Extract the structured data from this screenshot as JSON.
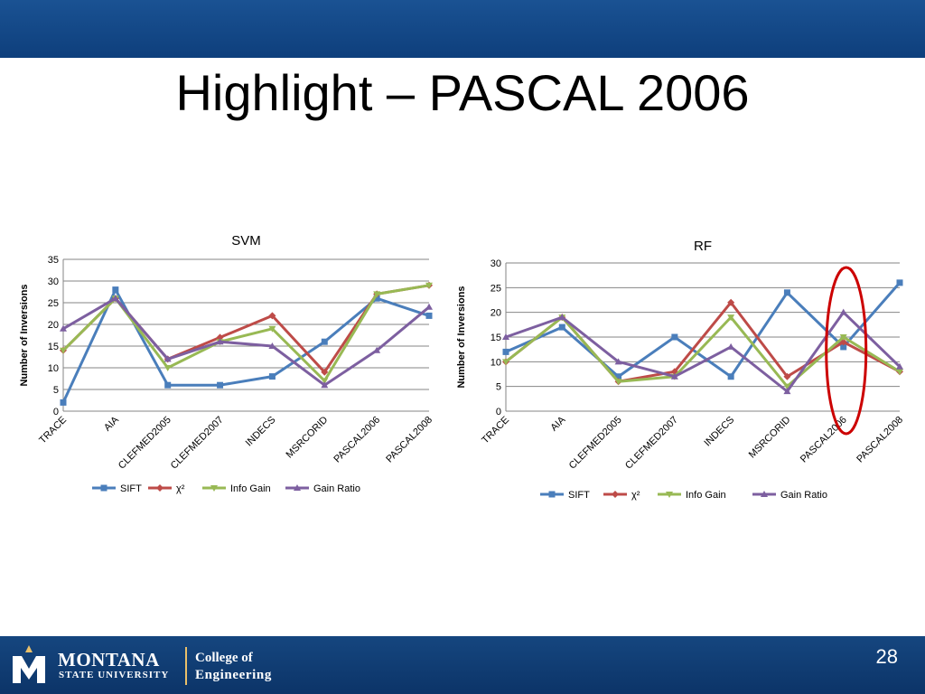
{
  "slide": {
    "title": "Highlight – PASCAL 2006",
    "page_number": "28"
  },
  "footer": {
    "university_line1": "MONTANA",
    "university_line2": "STATE UNIVERSITY",
    "college_line1": "College of",
    "college_line2": "Engineering",
    "logo_letter": "M"
  },
  "colors": {
    "header_band": "#15467f",
    "sift": "#4a7ebb",
    "chi2": "#be4b48",
    "info_gain": "#98b954",
    "gain_ratio": "#7d5fa0",
    "highlight_ellipse": "#cc0000"
  },
  "chart_data": [
    {
      "type": "line",
      "title": "SVM",
      "xlabel": "",
      "ylabel": "Number of Inversions",
      "ylim": [
        0,
        35
      ],
      "yticks": [
        0,
        5,
        10,
        15,
        20,
        25,
        30,
        35
      ],
      "grid": true,
      "legend": "bottom",
      "categories": [
        "TRACE",
        "AIA",
        "CLEFMED2005",
        "CLEFMED2007",
        "INDECS",
        "MSRCORID",
        "PASCAL2006",
        "PASCAL2008"
      ],
      "series": [
        {
          "name": "SIFT",
          "marker": "square",
          "values": [
            2,
            28,
            6,
            6,
            8,
            16,
            26,
            22
          ]
        },
        {
          "name": "χ²",
          "marker": "diamond",
          "values": [
            14,
            26,
            12,
            17,
            22,
            9,
            27,
            29
          ]
        },
        {
          "name": "Info Gain",
          "marker": "triangle-down",
          "values": [
            14,
            26,
            10,
            16,
            19,
            7,
            27,
            29
          ]
        },
        {
          "name": "Gain Ratio",
          "marker": "triangle-up",
          "values": [
            19,
            26,
            12,
            16,
            15,
            6,
            14,
            24
          ]
        }
      ]
    },
    {
      "type": "line",
      "title": "RF",
      "xlabel": "",
      "ylabel": "Number of Inversions",
      "ylim": [
        0,
        30
      ],
      "yticks": [
        0,
        5,
        10,
        15,
        20,
        25,
        30
      ],
      "grid": true,
      "legend": "bottom",
      "categories": [
        "TRACE",
        "AIA",
        "CLEFMED2005",
        "CLEFMED2007",
        "INDECS",
        "MSRCORID",
        "PASCAL2006",
        "PASCAL2008"
      ],
      "highlight_category": "PASCAL2006",
      "series": [
        {
          "name": "SIFT",
          "marker": "square",
          "values": [
            12,
            17,
            7,
            15,
            7,
            24,
            13,
            26
          ]
        },
        {
          "name": "χ²",
          "marker": "diamond",
          "values": [
            10,
            19,
            6,
            8,
            22,
            7,
            14,
            8
          ]
        },
        {
          "name": "Info Gain",
          "marker": "triangle-down",
          "values": [
            10,
            19,
            6,
            7,
            19,
            5,
            15,
            8
          ]
        },
        {
          "name": "Gain Ratio",
          "marker": "triangle-up",
          "values": [
            15,
            19,
            10,
            7,
            13,
            4,
            20,
            9
          ]
        }
      ]
    }
  ]
}
